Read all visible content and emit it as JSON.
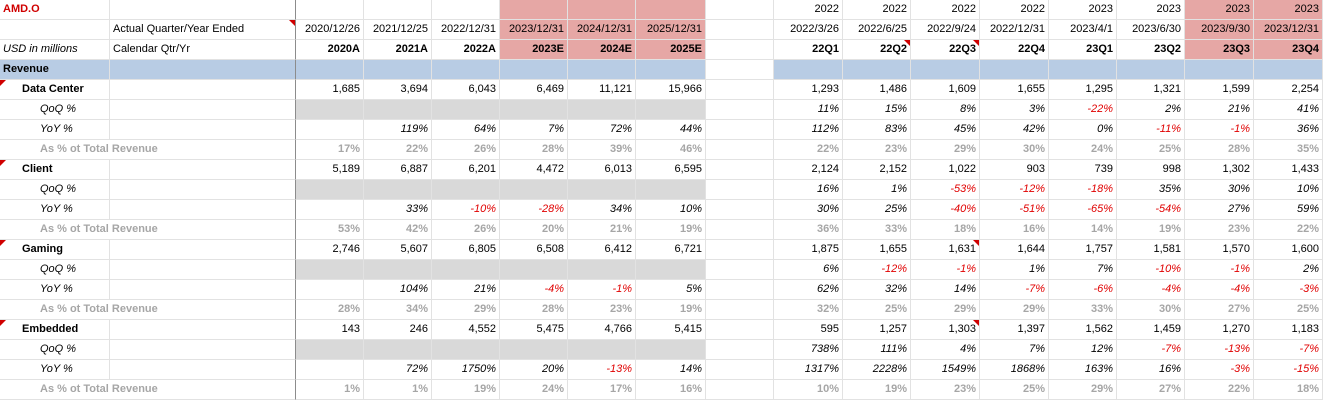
{
  "ticker": "AMD.O",
  "header": {
    "row1_label": "Actual Quarter/Year Ended",
    "row2_unit": "USD in millions",
    "row2_label": "Calendar Qtr/Yr",
    "annual": [
      {
        "date": "2020/12/26",
        "period": "2020A"
      },
      {
        "date": "2021/12/25",
        "period": "2021A"
      },
      {
        "date": "2022/12/31",
        "period": "2022A"
      },
      {
        "date": "2023/12/31",
        "period": "2023E"
      },
      {
        "date": "2024/12/31",
        "period": "2024E"
      },
      {
        "date": "2025/12/31",
        "period": "2025E"
      }
    ],
    "quarters": [
      {
        "year": "2022",
        "date": "2022/3/26",
        "period": "22Q1"
      },
      {
        "year": "2022",
        "date": "2022/6/25",
        "period": "22Q2"
      },
      {
        "year": "2022",
        "date": "2022/9/24",
        "period": "22Q3"
      },
      {
        "year": "2022",
        "date": "2022/12/31",
        "period": "22Q4"
      },
      {
        "year": "2023",
        "date": "2023/4/1",
        "period": "23Q1"
      },
      {
        "year": "2023",
        "date": "2023/6/30",
        "period": "23Q2"
      },
      {
        "year": "2023",
        "date": "2023/9/30",
        "period": "23Q3"
      },
      {
        "year": "2023",
        "date": "2023/12/31",
        "period": "23Q4"
      }
    ]
  },
  "section_title": "Revenue",
  "segments": [
    {
      "name": "Data Center",
      "values": {
        "annual": [
          "1,685",
          "3,694",
          "6,043",
          "6,469",
          "11,121",
          "15,966"
        ],
        "quarters": [
          "1,293",
          "1,486",
          "1,609",
          "1,655",
          "1,295",
          "1,321",
          "1,599",
          "2,254"
        ]
      },
      "qoq": {
        "label": "QoQ %",
        "quarters": [
          "11%",
          "15%",
          "8%",
          "3%",
          "-22%",
          "2%",
          "21%",
          "41%"
        ]
      },
      "yoy": {
        "label": "YoY %",
        "annual": [
          "",
          "119%",
          "64%",
          "7%",
          "72%",
          "44%"
        ],
        "quarters": [
          "112%",
          "83%",
          "45%",
          "42%",
          "0%",
          "-11%",
          "-1%",
          "36%"
        ]
      },
      "share": {
        "label": "As % ot Total Revenue",
        "annual": [
          "17%",
          "22%",
          "26%",
          "28%",
          "39%",
          "46%"
        ],
        "quarters": [
          "22%",
          "23%",
          "29%",
          "30%",
          "24%",
          "25%",
          "28%",
          "35%"
        ]
      }
    },
    {
      "name": "Client",
      "values": {
        "annual": [
          "5,189",
          "6,887",
          "6,201",
          "4,472",
          "6,013",
          "6,595"
        ],
        "quarters": [
          "2,124",
          "2,152",
          "1,022",
          "903",
          "739",
          "998",
          "1,302",
          "1,433"
        ]
      },
      "qoq": {
        "label": "QoQ %",
        "quarters": [
          "16%",
          "1%",
          "-53%",
          "-12%",
          "-18%",
          "35%",
          "30%",
          "10%"
        ]
      },
      "yoy": {
        "label": "YoY %",
        "annual": [
          "",
          "33%",
          "-10%",
          "-28%",
          "34%",
          "10%"
        ],
        "quarters": [
          "30%",
          "25%",
          "-40%",
          "-51%",
          "-65%",
          "-54%",
          "27%",
          "59%"
        ]
      },
      "share": {
        "label": "As % ot Total Revenue",
        "annual": [
          "53%",
          "42%",
          "26%",
          "20%",
          "21%",
          "19%"
        ],
        "quarters": [
          "36%",
          "33%",
          "18%",
          "16%",
          "14%",
          "19%",
          "23%",
          "22%"
        ]
      }
    },
    {
      "name": "Gaming",
      "values": {
        "annual": [
          "2,746",
          "5,607",
          "6,805",
          "6,508",
          "6,412",
          "6,721"
        ],
        "quarters": [
          "1,875",
          "1,655",
          "1,631",
          "1,644",
          "1,757",
          "1,581",
          "1,570",
          "1,600"
        ]
      },
      "qoq": {
        "label": "QoQ %",
        "quarters": [
          "6%",
          "-12%",
          "-1%",
          "1%",
          "7%",
          "-10%",
          "-1%",
          "2%"
        ]
      },
      "yoy": {
        "label": "YoY %",
        "annual": [
          "",
          "104%",
          "21%",
          "-4%",
          "-1%",
          "5%"
        ],
        "quarters": [
          "62%",
          "32%",
          "14%",
          "-7%",
          "-6%",
          "-4%",
          "-4%",
          "-3%"
        ]
      },
      "share": {
        "label": "As % ot Total Revenue",
        "annual": [
          "28%",
          "34%",
          "29%",
          "28%",
          "23%",
          "19%"
        ],
        "quarters": [
          "32%",
          "25%",
          "29%",
          "29%",
          "33%",
          "30%",
          "27%",
          "25%"
        ]
      }
    },
    {
      "name": "Embedded",
      "values": {
        "annual": [
          "143",
          "246",
          "4,552",
          "5,475",
          "4,766",
          "5,415"
        ],
        "quarters": [
          "595",
          "1,257",
          "1,303",
          "1,397",
          "1,562",
          "1,459",
          "1,270",
          "1,183"
        ]
      },
      "qoq": {
        "label": "QoQ %",
        "quarters": [
          "738%",
          "111%",
          "4%",
          "7%",
          "12%",
          "-7%",
          "-13%",
          "-7%"
        ]
      },
      "yoy": {
        "label": "YoY %",
        "annual": [
          "",
          "72%",
          "1750%",
          "20%",
          "-13%",
          "14%"
        ],
        "quarters": [
          "1317%",
          "2228%",
          "1549%",
          "1868%",
          "163%",
          "16%",
          "-3%",
          "-15%"
        ]
      },
      "share": {
        "label": "As % ot Total Revenue",
        "annual": [
          "1%",
          "1%",
          "19%",
          "24%",
          "17%",
          "16%"
        ],
        "quarters": [
          "10%",
          "19%",
          "23%",
          "25%",
          "29%",
          "27%",
          "22%",
          "18%"
        ]
      }
    }
  ],
  "colors": {
    "forecast_shade": "#e6a7a5",
    "section_band": "#b8cce4",
    "negative": "#e00000",
    "ticker": "#d00000"
  }
}
